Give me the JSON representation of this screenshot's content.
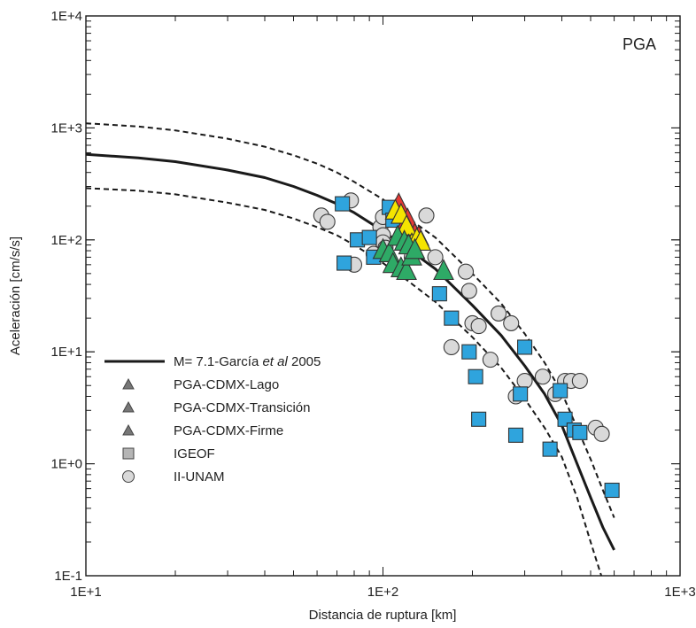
{
  "chart_data": {
    "type": "scatter",
    "panel_label": "PGA",
    "xlabel": "Distancia de ruptura [km]",
    "ylabel": "Aceleración [cm/s/s]",
    "x_scale": "log",
    "y_scale": "log",
    "xlim": [
      10,
      1000
    ],
    "ylim": [
      0.1,
      10000
    ],
    "x_ticks": [
      {
        "value": 10,
        "label": "1E+1"
      },
      {
        "value": 100,
        "label": "1E+2"
      },
      {
        "value": 1000,
        "label": "1E+3"
      }
    ],
    "y_ticks": [
      {
        "value": 0.1,
        "label": "1E-1"
      },
      {
        "value": 1,
        "label": "1E+0"
      },
      {
        "value": 10,
        "label": "1E+1"
      },
      {
        "value": 100,
        "label": "1E+2"
      },
      {
        "value": 1000,
        "label": "1E+3"
      },
      {
        "value": 10000,
        "label": "1E+4"
      }
    ],
    "grid": false,
    "legend_position": "lower-left",
    "legend": [
      {
        "symbol": "line",
        "parts": [
          {
            "text": "M= 7.1-García ",
            "italic": false
          },
          {
            "text": "et al",
            "italic": true
          },
          {
            "text": " 2005",
            "italic": false
          }
        ]
      },
      {
        "symbol": "triangle",
        "text": "PGA-CDMX-Lago"
      },
      {
        "symbol": "triangle",
        "text": "PGA-CDMX-Transición"
      },
      {
        "symbol": "triangle",
        "text": "PGA-CDMX-Firme"
      },
      {
        "symbol": "square",
        "text": "IGEOF"
      },
      {
        "symbol": "circle",
        "text": "II-UNAM"
      }
    ],
    "curves": [
      {
        "style": "solid",
        "color": "#1a1a1a",
        "x": [
          10,
          15,
          20,
          30,
          40,
          50,
          60,
          70,
          80,
          100,
          120,
          150,
          200,
          250,
          300,
          350,
          400,
          450,
          500,
          550,
          600
        ],
        "y": [
          580,
          540,
          500,
          420,
          360,
          300,
          250,
          210,
          175,
          120,
          85,
          55,
          26,
          14,
          7.5,
          4.2,
          2.2,
          1.0,
          0.5,
          0.27,
          0.17
        ]
      },
      {
        "style": "dashed",
        "color": "#1a1a1a",
        "x": [
          10,
          15,
          20,
          30,
          40,
          50,
          60,
          70,
          80,
          100,
          120,
          150,
          200,
          250,
          300,
          350,
          400,
          450,
          500,
          550,
          600
        ],
        "y": [
          1100,
          1030,
          950,
          800,
          680,
          570,
          480,
          400,
          330,
          230,
          160,
          105,
          50,
          27,
          14.5,
          8,
          4.3,
          2.1,
          1.1,
          0.58,
          0.33
        ]
      },
      {
        "style": "dashed",
        "color": "#1a1a1a",
        "x": [
          10,
          15,
          20,
          30,
          40,
          50,
          60,
          70,
          80,
          100,
          120,
          150,
          200,
          250,
          300,
          350,
          400,
          450,
          500,
          550
        ],
        "y": [
          290,
          275,
          255,
          215,
          185,
          155,
          130,
          110,
          90,
          62,
          44,
          28,
          13.5,
          7.2,
          3.8,
          2.1,
          1.15,
          0.5,
          0.2,
          0.09
        ]
      }
    ],
    "series": [
      {
        "marker": "circle",
        "fill": "#d9d9d9",
        "stroke": "#3a3a3a",
        "x": [
          62,
          65,
          78,
          80,
          93,
          98,
          100,
          100,
          100,
          102,
          125,
          140,
          150,
          170,
          190,
          195,
          200,
          210,
          230,
          245,
          270,
          280,
          300,
          345,
          380,
          410,
          430,
          460,
          520,
          545
        ],
        "y": [
          165,
          145,
          225,
          60,
          75,
          130,
          160,
          110,
          95,
          85,
          70,
          165,
          70,
          11,
          52,
          35,
          18,
          17,
          8.5,
          22,
          18,
          4,
          5.5,
          6,
          4.2,
          5.5,
          5.5,
          5.5,
          2.1,
          1.85
        ]
      },
      {
        "marker": "square",
        "fill": "#2fa4dd",
        "stroke": "#333333",
        "x": [
          73,
          74,
          82,
          90,
          93,
          105,
          108,
          155,
          170,
          195,
          205,
          210,
          280,
          290,
          300,
          365,
          395,
          410,
          440,
          460,
          590
        ],
        "y": [
          210,
          62,
          100,
          105,
          70,
          195,
          150,
          33,
          20,
          10,
          6,
          2.5,
          1.8,
          4.2,
          11,
          1.35,
          4.5,
          2.5,
          2.0,
          1.9,
          0.58
        ]
      },
      {
        "marker": "triangle",
        "fill": "#e53935",
        "stroke": "#333333",
        "x": [
          113,
          118,
          121,
          128,
          132
        ],
        "y": [
          205,
          120,
          150,
          110,
          105
        ]
      },
      {
        "marker": "triangle",
        "fill": "#f5e400",
        "stroke": "#333333",
        "x": [
          110,
          115,
          120,
          125,
          130,
          134
        ],
        "y": [
          180,
          165,
          130,
          90,
          100,
          95
        ]
      },
      {
        "marker": "triangle",
        "fill": "#2eaa66",
        "stroke": "#333333",
        "x": [
          100,
          105,
          108,
          112,
          115,
          118,
          120,
          122,
          125,
          128,
          160
        ],
        "y": [
          80,
          75,
          60,
          105,
          55,
          95,
          52,
          88,
          70,
          80,
          52
        ]
      }
    ]
  }
}
